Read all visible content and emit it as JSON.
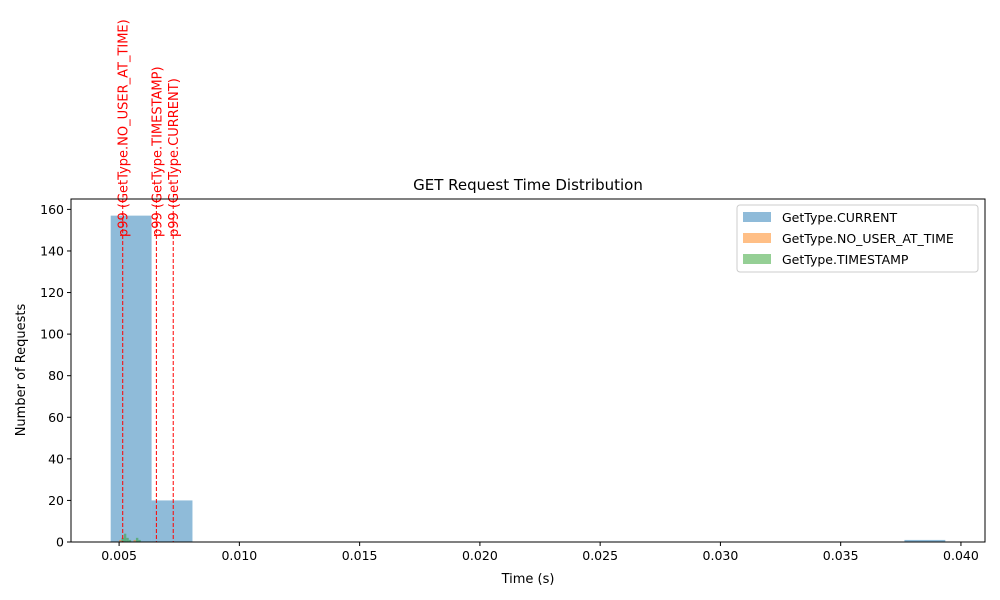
{
  "chart_data": {
    "type": "bar",
    "title": "GET Request Time Distribution",
    "xlabel": "Time (s)",
    "ylabel": "Number of Requests",
    "xlim": [
      0.003,
      0.041
    ],
    "ylim": [
      0,
      165
    ],
    "xticks": [
      "0.005",
      "0.010",
      "0.015",
      "0.020",
      "0.025",
      "0.030",
      "0.035",
      "0.040"
    ],
    "yticks": [
      "0",
      "20",
      "40",
      "60",
      "80",
      "100",
      "120",
      "140",
      "160"
    ],
    "grid": false,
    "legend_position": "top-right",
    "series": [
      {
        "name": "GetType.CURRENT",
        "color": "#1f77b4",
        "bins": [
          {
            "x0": 0.00465,
            "x1": 0.00635,
            "count": 157
          },
          {
            "x0": 0.00635,
            "x1": 0.00805,
            "count": 20
          },
          {
            "x0": 0.03765,
            "x1": 0.03935,
            "count": 1
          }
        ]
      },
      {
        "name": "GetType.NO_USER_AT_TIME",
        "color": "#ff7f0e",
        "bins": [
          {
            "x0": 0.005,
            "x1": 0.0051,
            "count": 1
          },
          {
            "x0": 0.0056,
            "x1": 0.0057,
            "count": 1
          }
        ]
      },
      {
        "name": "GetType.TIMESTAMP",
        "color": "#2ca02c",
        "bins": [
          {
            "x0": 0.0051,
            "x1": 0.0052,
            "count": 2
          },
          {
            "x0": 0.0052,
            "x1": 0.0053,
            "count": 4
          },
          {
            "x0": 0.0053,
            "x1": 0.0054,
            "count": 2
          },
          {
            "x0": 0.0054,
            "x1": 0.0055,
            "count": 1
          },
          {
            "x0": 0.0057,
            "x1": 0.0058,
            "count": 2
          },
          {
            "x0": 0.0058,
            "x1": 0.0059,
            "count": 1
          }
        ]
      }
    ],
    "percentile_lines": [
      {
        "label": "p99 (GetType.NO_USER_AT_TIME)",
        "x": 0.00515,
        "color": "#ff0000"
      },
      {
        "label": "p99 (GetType.TIMESTAMP)",
        "x": 0.00655,
        "color": "#ff0000"
      },
      {
        "label": "p99 (GetType.CURRENT)",
        "x": 0.00725,
        "color": "#ff0000"
      }
    ]
  }
}
